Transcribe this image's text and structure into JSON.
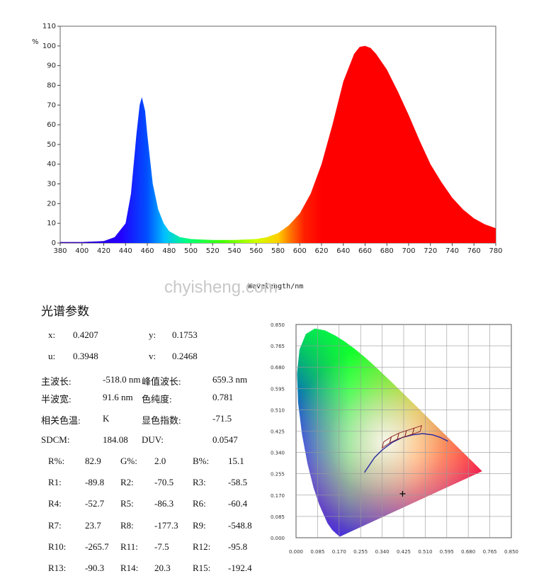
{
  "spectrum": {
    "y_unit": "%",
    "x_label": "Wavelength/nm",
    "watermark": "chyisheng.com"
  },
  "chart_data": [
    {
      "type": "area",
      "xlabel": "Wavelength/nm",
      "ylabel": "%",
      "xlim": [
        380,
        780
      ],
      "ylim": [
        0,
        110
      ],
      "x_ticks": [
        380,
        400,
        420,
        440,
        460,
        480,
        500,
        520,
        540,
        560,
        580,
        600,
        620,
        640,
        660,
        680,
        700,
        720,
        740,
        760,
        780
      ],
      "y_ticks": [
        0,
        10,
        20,
        30,
        40,
        50,
        60,
        70,
        80,
        90,
        100,
        110
      ],
      "grid": false,
      "fill": "wavelength-color gradient",
      "x": [
        380,
        400,
        420,
        430,
        440,
        445,
        450,
        453,
        455,
        458,
        460,
        465,
        470,
        475,
        480,
        490,
        500,
        520,
        540,
        560,
        570,
        580,
        590,
        600,
        610,
        620,
        630,
        640,
        650,
        655,
        660,
        665,
        670,
        680,
        690,
        700,
        710,
        720,
        730,
        740,
        750,
        760,
        770,
        780
      ],
      "values": [
        0.5,
        0.5,
        1,
        3,
        10,
        25,
        55,
        70,
        74,
        67,
        55,
        30,
        17,
        10,
        6,
        3,
        2,
        1.5,
        1.5,
        2,
        3,
        5,
        9,
        15,
        25,
        40,
        60,
        82,
        96,
        99.5,
        100,
        99,
        96,
        88,
        77,
        65,
        52,
        40,
        31,
        23,
        17,
        12.5,
        9.5,
        7.5
      ]
    },
    {
      "type": "scatter",
      "name": "CIE 1931 chromaticity diagram",
      "xlim": [
        0,
        0.85
      ],
      "ylim": [
        0,
        0.85
      ],
      "x_ticks": [
        "0.000",
        "0.085",
        "0.170",
        "0.255",
        "0.340",
        "0.425",
        "0.510",
        "0.595",
        "0.680",
        "0.765",
        "0.850"
      ],
      "y_ticks": [
        "0.000",
        "0.085",
        "0.170",
        "0.255",
        "0.340",
        "0.425",
        "0.510",
        "0.595",
        "0.680",
        "0.765",
        "0.850"
      ],
      "grid": true,
      "points": [
        {
          "x": 0.4207,
          "y": 0.1753
        }
      ]
    }
  ],
  "params": {
    "title": "光谱参数",
    "rows": [
      [
        {
          "label": "x:",
          "value": "0.4207"
        },
        {
          "label": "y:",
          "value": "0.1753"
        }
      ],
      [
        {
          "label": "u:",
          "value": "0.3948"
        },
        {
          "label": "v:",
          "value": "0.2468"
        }
      ],
      [
        {
          "label": "主波长:",
          "value": "-518.0 nm"
        },
        {
          "label": "峰值波长:",
          "value": "659.3 nm"
        }
      ],
      [
        {
          "label": "半波宽:",
          "value": "91.6 nm"
        },
        {
          "label": "色纯度:",
          "value": "0.781"
        }
      ],
      [
        {
          "label": "相关色温:",
          "value": "K"
        },
        {
          "label": "显色指数:",
          "value": "-71.5"
        }
      ],
      [
        {
          "label": "SDCM:",
          "value": "184.08"
        },
        {
          "label": "DUV:",
          "value": "0.0547"
        }
      ]
    ],
    "grid_rows": [
      [
        {
          "label": "R%:",
          "value": "82.9"
        },
        {
          "label": "G%:",
          "value": "2.0"
        },
        {
          "label": "B%:",
          "value": "15.1"
        }
      ],
      [
        {
          "label": "R1:",
          "value": "-89.8"
        },
        {
          "label": "R2:",
          "value": "-70.5"
        },
        {
          "label": "R3:",
          "value": "-58.5"
        }
      ],
      [
        {
          "label": "R4:",
          "value": "-52.7"
        },
        {
          "label": "R5:",
          "value": "-86.3"
        },
        {
          "label": "R6:",
          "value": "-60.4"
        }
      ],
      [
        {
          "label": "R7:",
          "value": "23.7"
        },
        {
          "label": "R8:",
          "value": "-177.3"
        },
        {
          "label": "R9:",
          "value": "-548.8"
        }
      ],
      [
        {
          "label": "R10:",
          "value": "-265.7"
        },
        {
          "label": "R11:",
          "value": "-7.5"
        },
        {
          "label": "R12:",
          "value": "-95.8"
        }
      ],
      [
        {
          "label": "R13:",
          "value": "-90.3"
        },
        {
          "label": "R14:",
          "value": "20.3"
        },
        {
          "label": "R15:",
          "value": "-192.4"
        }
      ]
    ]
  }
}
